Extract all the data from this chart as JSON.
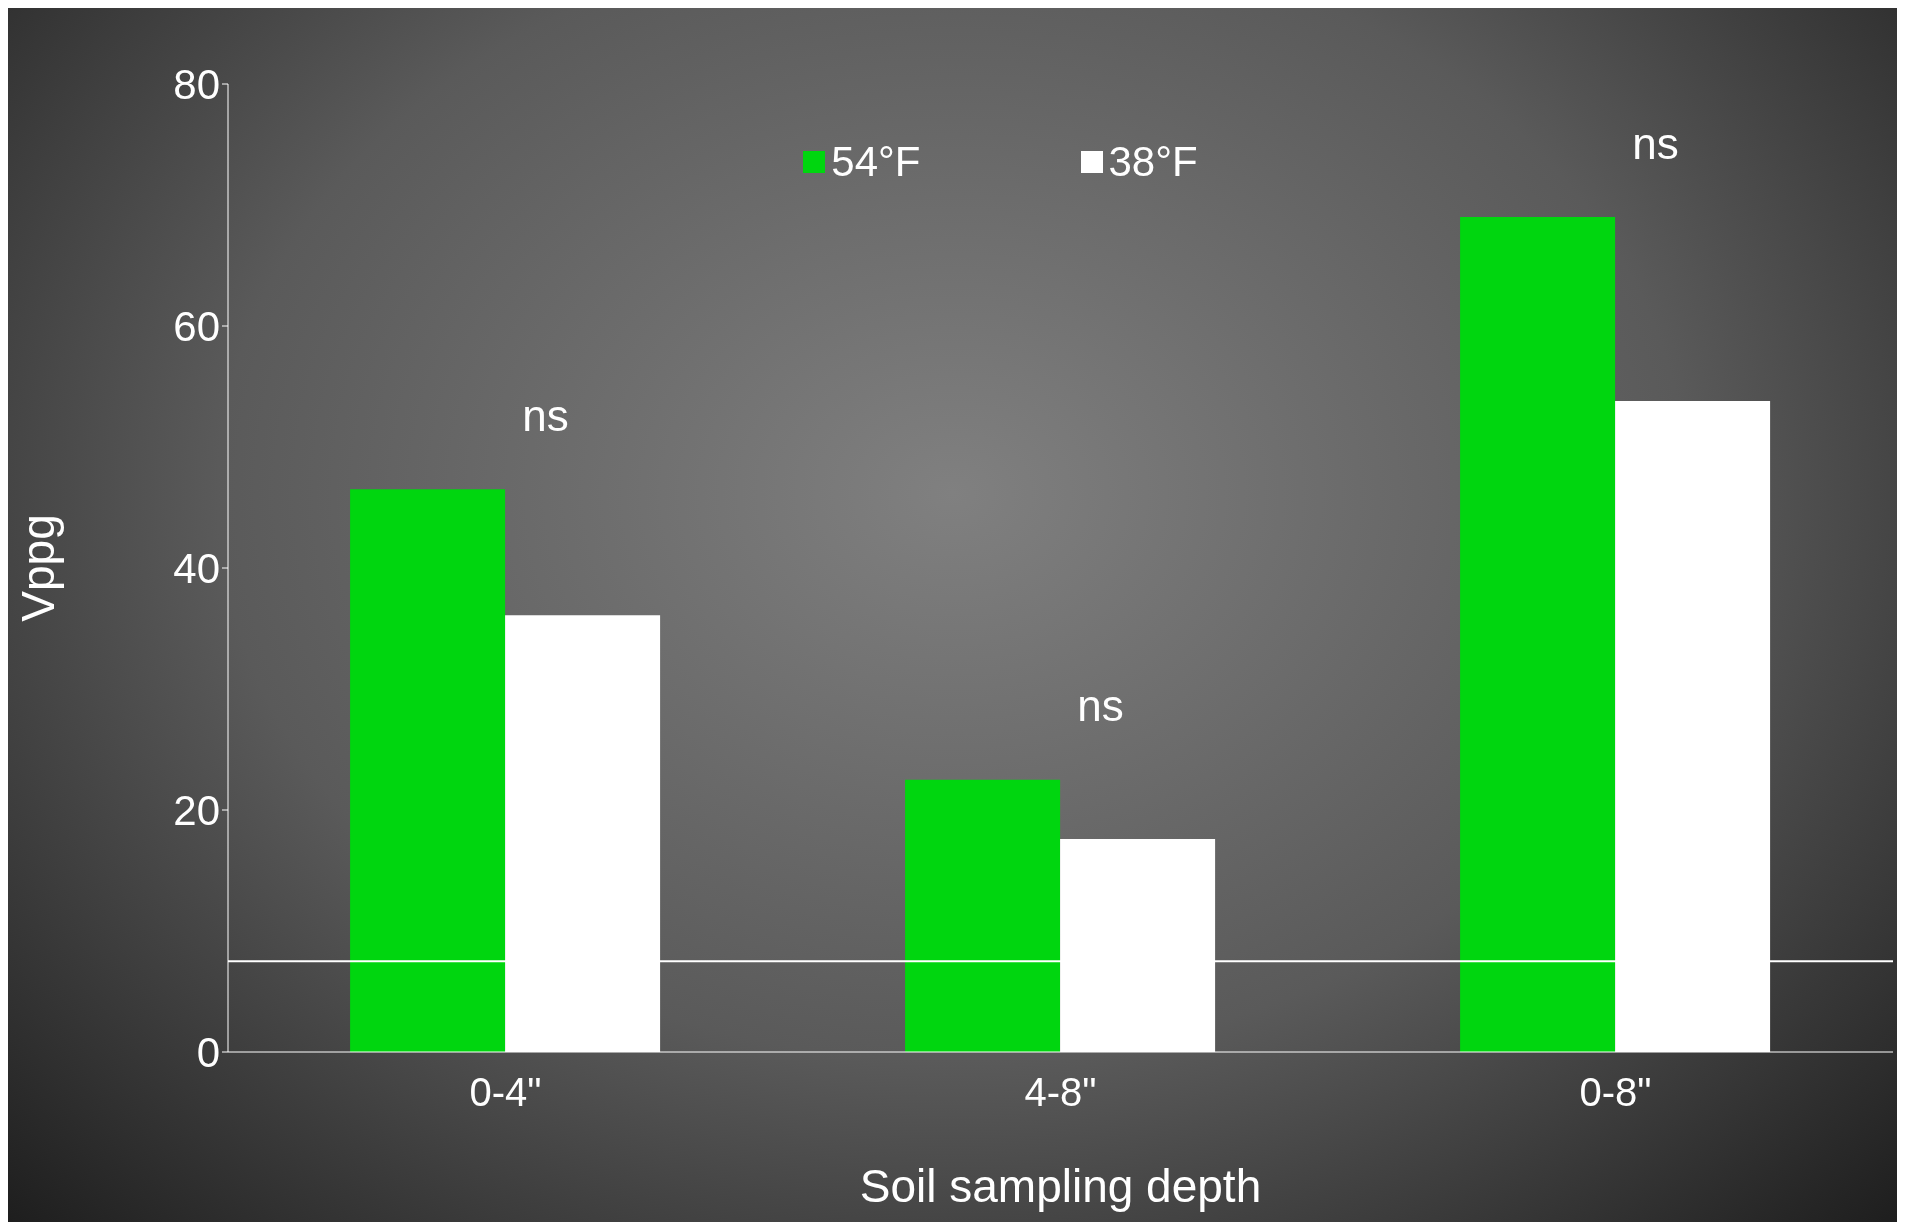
{
  "chart_data": {
    "type": "bar",
    "xlabel": "Soil sampling depth",
    "ylabel": "Vppg",
    "categories": [
      "0-4\"",
      "4-8\"",
      "0-8\""
    ],
    "series": [
      {
        "name": "54°F",
        "color": "#00d60f",
        "values": [
          46.5,
          22.5,
          69.0
        ]
      },
      {
        "name": "38°F",
        "color": "#ffffff",
        "values": [
          36.1,
          17.6,
          53.8
        ]
      }
    ],
    "ylim": [
      0,
      80
    ],
    "yticks": [
      0,
      20,
      40,
      60,
      80
    ],
    "grid": false,
    "legend": "top",
    "ref_lines": [
      {
        "axis": "y",
        "value": 7.5,
        "color": "#ffffff"
      }
    ],
    "annotations": [
      "ns",
      "ns",
      "ns"
    ]
  }
}
